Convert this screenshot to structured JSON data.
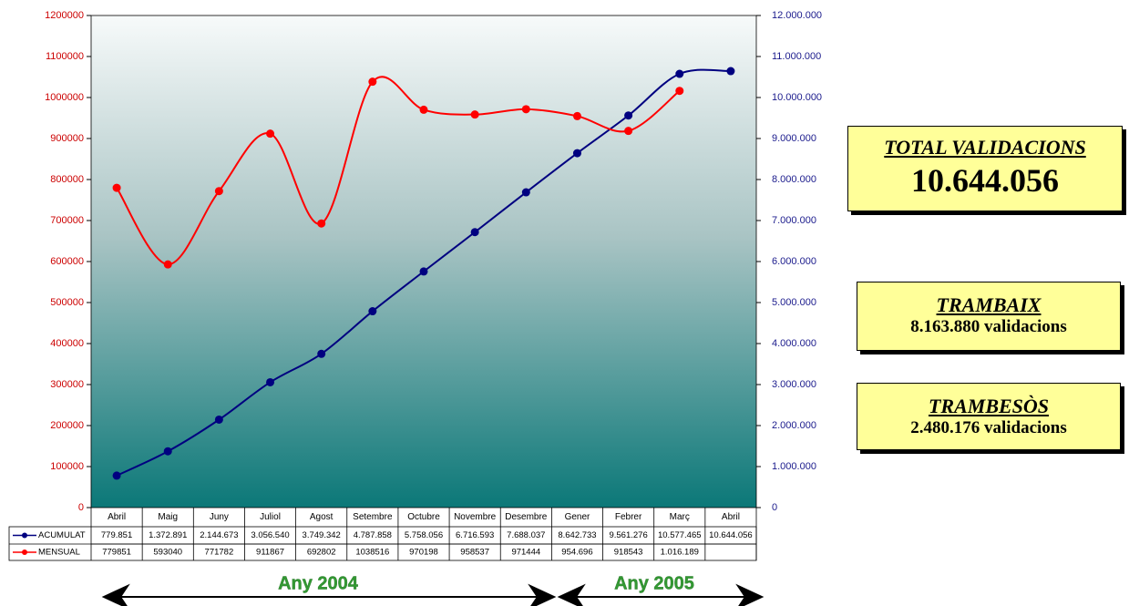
{
  "chart_data": {
    "type": "line",
    "categories": [
      "Abril",
      "Maig",
      "Juny",
      "Juliol",
      "Agost",
      "Setembre",
      "Octubre",
      "Novembre",
      "Desembre",
      "Gener",
      "Febrer",
      "Març",
      "Abril"
    ],
    "series": [
      {
        "name": "ACUMULAT",
        "color": "#000080",
        "axis": "y2",
        "values": [
          779851,
          1372891,
          2144673,
          3056540,
          3749342,
          4787858,
          5758056,
          6716593,
          7688037,
          8642733,
          9561276,
          10577465,
          10644056
        ],
        "value_labels": [
          "779.851",
          "1.372.891",
          "2.144.673",
          "3.056.540",
          "3.749.342",
          "4.787.858",
          "5.758.056",
          "6.716.593",
          "7.688.037",
          "8.642.733",
          "9.561.276",
          "10.577.465",
          "10.644.056"
        ]
      },
      {
        "name": "MENSUAL",
        "color": "#ff0000",
        "values": [
          779851,
          593040,
          771782,
          911867,
          692802,
          1038516,
          970198,
          958537,
          971444,
          954696,
          918543,
          1016189,
          null
        ],
        "value_labels": [
          "779851",
          "593040",
          "771782",
          "911867",
          "692802",
          "1038516",
          "970198",
          "958537",
          "971444",
          "954.696",
          "918543",
          "1.016.189",
          null
        ]
      }
    ],
    "ylim": [
      0,
      1200000
    ],
    "yticks": [
      0,
      100000,
      200000,
      300000,
      400000,
      500000,
      600000,
      700000,
      800000,
      900000,
      1000000,
      1100000,
      1200000
    ],
    "y2lim": [
      0,
      12000000
    ],
    "y2ticks": [
      {
        "value": 0,
        "label": "0"
      },
      {
        "value": 1000000,
        "label": "1.000.000"
      },
      {
        "value": 2000000,
        "label": "2.000.000"
      },
      {
        "value": 3000000,
        "label": "3.000.000"
      },
      {
        "value": 4000000,
        "label": "4.000.000"
      },
      {
        "value": 5000000,
        "label": "5.000.000"
      },
      {
        "value": 6000000,
        "label": "6.000.000"
      },
      {
        "value": 7000000,
        "label": "7.000.000"
      },
      {
        "value": 8000000,
        "label": "8.000.000"
      },
      {
        "value": 9000000,
        "label": "9.000.000"
      },
      {
        "value": 10000000,
        "label": "10.000.000"
      },
      {
        "value": 11000000,
        "label": "11.000.000"
      },
      {
        "value": 12000000,
        "label": "12.000.000"
      }
    ]
  },
  "total": {
    "title": "TOTAL VALIDACIONS",
    "value": "10.644.056"
  },
  "trambaix": {
    "title": "TRAMBAIX",
    "text": "8.163.880 validacions"
  },
  "trambesos": {
    "title": "TRAMBESÒS",
    "text": "2.480.176 validacions"
  },
  "periods": [
    "Any 2004",
    "Any 2005"
  ]
}
